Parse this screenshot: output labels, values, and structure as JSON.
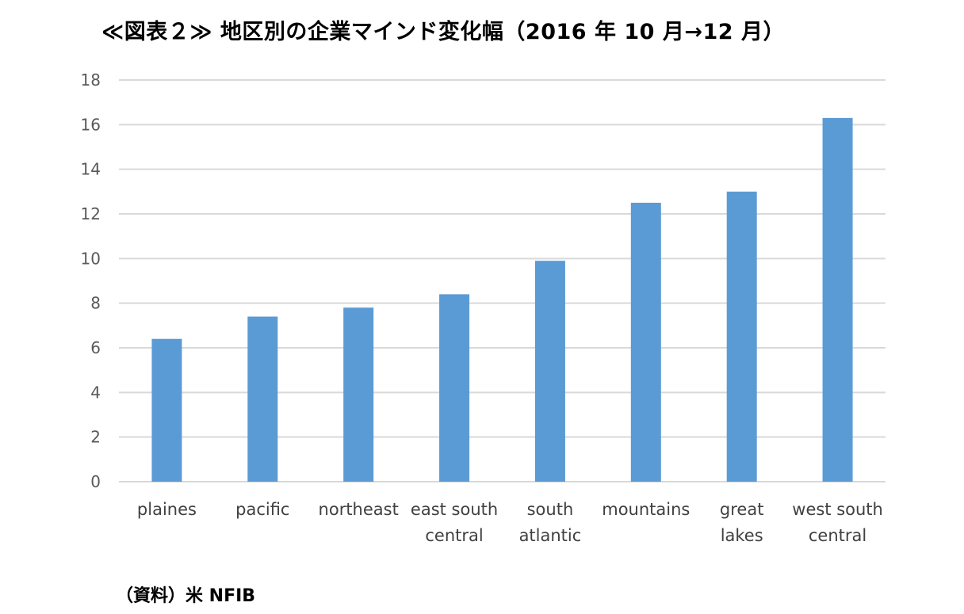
{
  "title": "≪図表２≫ 地区別の企業マインド変化幅（2016 年 10 月→12 月）",
  "source": "（資料）米 NFIB",
  "chart_data": {
    "type": "bar",
    "categories": [
      "plaines",
      "pacific",
      "northeast",
      "east south central",
      "south atlantic",
      "mountains",
      "great lakes",
      "west south central"
    ],
    "category_lines": [
      [
        "plaines"
      ],
      [
        "pacific"
      ],
      [
        "northeast"
      ],
      [
        "east south",
        "central"
      ],
      [
        "south",
        "atlantic"
      ],
      [
        "mountains"
      ],
      [
        "great",
        "lakes"
      ],
      [
        "west south",
        "central"
      ]
    ],
    "values": [
      6.4,
      7.4,
      7.8,
      8.4,
      9.9,
      12.5,
      13.0,
      16.3
    ],
    "yticks": [
      "0",
      "2",
      "4",
      "6",
      "8",
      "10",
      "12",
      "14",
      "16",
      "18"
    ],
    "ylim": [
      0,
      18
    ],
    "grid": true,
    "bar_color": "#5B9BD5",
    "grid_color": "#D9D9D9",
    "xlabel": "",
    "ylabel": ""
  }
}
